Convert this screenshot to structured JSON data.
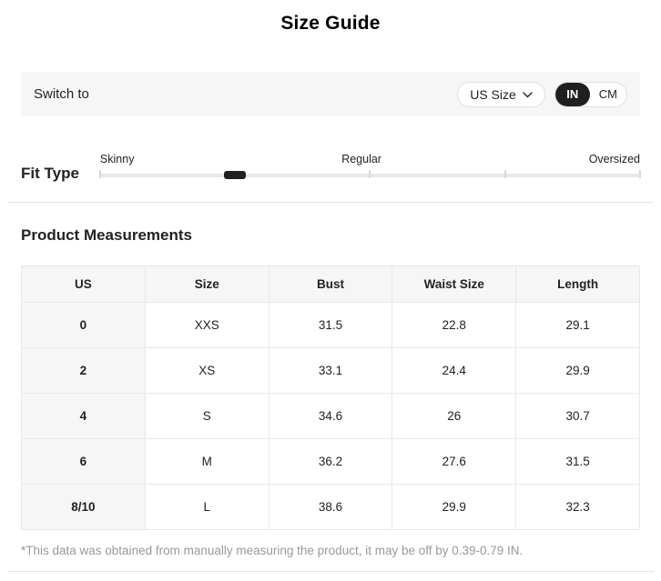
{
  "header": {
    "title": "Size Guide"
  },
  "switch_bar": {
    "label": "Switch to",
    "size_selector": {
      "value": "US Size"
    },
    "unit_toggle": {
      "options": [
        "IN",
        "CM"
      ],
      "selected": "IN"
    }
  },
  "fit_type": {
    "label": "Fit Type",
    "options": [
      "Skinny",
      "Regular",
      "Oversized"
    ],
    "indicator_percent": 25,
    "tick_percents": [
      0,
      50,
      75,
      100
    ]
  },
  "measurements": {
    "heading": "Product Measurements",
    "columns": [
      "US",
      "Size",
      "Bust",
      "Waist Size",
      "Length"
    ],
    "rows": [
      [
        "0",
        "XXS",
        "31.5",
        "22.8",
        "29.1"
      ],
      [
        "2",
        "XS",
        "33.1",
        "24.4",
        "29.9"
      ],
      [
        "4",
        "S",
        "34.6",
        "26",
        "30.7"
      ],
      [
        "6",
        "M",
        "36.2",
        "27.6",
        "31.5"
      ],
      [
        "8/10",
        "L",
        "38.6",
        "29.9",
        "32.3"
      ]
    ],
    "footnote": "*This data was obtained from manually measuring the product, it may be off by 0.39-0.79 IN."
  },
  "colors": {
    "accent_dark": "#1f1f1f",
    "panel_gray": "#f6f6f6",
    "table_border": "#e8e8e8",
    "muted_text": "#999999"
  }
}
